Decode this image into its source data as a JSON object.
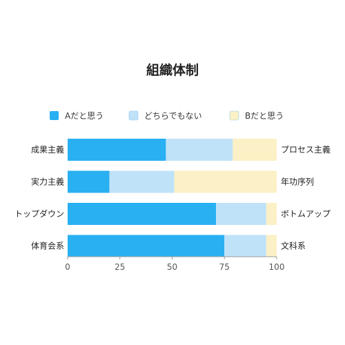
{
  "chart_data": {
    "type": "bar",
    "orientation": "horizontal",
    "stacked": true,
    "title": "組織体制",
    "categories_left": [
      "成果主義",
      "実力主義",
      "トップダウン",
      "体育会系"
    ],
    "categories_right": [
      "プロセス主義",
      "年功序列",
      "ボトムアップ",
      "文科系"
    ],
    "series": [
      {
        "name": "Aだと思う",
        "color": "#29b0f2",
        "values": [
          47,
          20,
          71,
          75
        ]
      },
      {
        "name": "どちらでもない",
        "color": "#bfe2f9",
        "values": [
          32,
          31,
          24,
          20
        ]
      },
      {
        "name": "Bだと思う",
        "color": "#fbf0c6",
        "values": [
          21,
          49,
          5,
          5
        ]
      }
    ],
    "xlim": [
      0,
      100
    ],
    "xticks": [
      "0",
      "25",
      "50",
      "75",
      "100"
    ],
    "legend_position": "top",
    "grid": false
  }
}
